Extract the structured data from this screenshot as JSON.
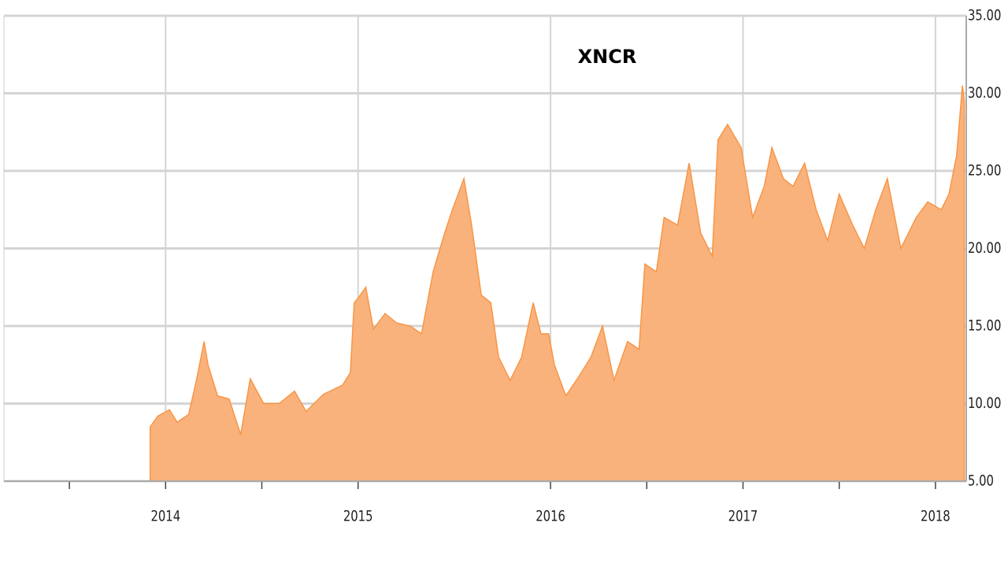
{
  "chart_data": {
    "type": "area",
    "title": "XNCR",
    "x": [
      2013.92,
      2013.96,
      2014.02,
      2014.06,
      2014.12,
      2014.16,
      2014.2,
      2014.22,
      2014.27,
      2014.33,
      2014.39,
      2014.44,
      2014.51,
      2014.59,
      2014.67,
      2014.73,
      2014.82,
      2014.92,
      2014.96,
      2014.98,
      2015.0,
      2015.04,
      2015.08,
      2015.14,
      2015.2,
      2015.27,
      2015.33,
      2015.39,
      2015.45,
      2015.49,
      2015.55,
      2015.59,
      2015.64,
      2015.69,
      2015.73,
      2015.79,
      2015.85,
      2015.91,
      2015.95,
      2015.99,
      2016.02,
      2016.08,
      2016.15,
      2016.21,
      2016.27,
      2016.33,
      2016.4,
      2016.46,
      2016.49,
      2016.55,
      2016.59,
      2016.66,
      2016.72,
      2016.78,
      2016.84,
      2016.87,
      2016.92,
      2016.99,
      2017.05,
      2017.11,
      2017.15,
      2017.21,
      2017.26,
      2017.32,
      2017.38,
      2017.44,
      2017.5,
      2017.57,
      2017.63,
      2017.69,
      2017.75,
      2017.82,
      2017.9,
      2017.96,
      2018.03,
      2018.07,
      2018.11,
      2018.14,
      2018.15
    ],
    "series": [
      {
        "name": "XNCR",
        "color": "#f79646",
        "fill": "#fab27c",
        "values": [
          8.5,
          9.2,
          9.6,
          8.8,
          9.3,
          11.5,
          14.0,
          12.5,
          10.5,
          10.3,
          8.0,
          11.6,
          10.0,
          10.0,
          10.8,
          9.5,
          10.6,
          11.2,
          12.0,
          16.5,
          16.8,
          17.5,
          14.8,
          15.8,
          15.2,
          15.0,
          14.5,
          18.5,
          21.0,
          22.5,
          24.5,
          21.5,
          17.0,
          16.5,
          13.0,
          11.5,
          13.0,
          16.5,
          14.5,
          14.5,
          12.5,
          10.5,
          11.8,
          13.0,
          15.0,
          11.5,
          14.0,
          13.5,
          19.0,
          18.5,
          22.0,
          21.5,
          25.5,
          21.0,
          19.5,
          27.0,
          28.0,
          26.5,
          22.0,
          24.0,
          26.5,
          24.5,
          24.0,
          25.5,
          22.5,
          20.5,
          23.5,
          21.5,
          20.0,
          22.5,
          24.5,
          20.0,
          22.0,
          23.0,
          22.5,
          23.5,
          26.0,
          30.5,
          29.5
        ]
      }
    ],
    "xlim": [
      2013.16,
      2018.16
    ],
    "xticks": [
      2014,
      2015,
      2016,
      2017,
      2018
    ],
    "xminorticks": [
      2013.5,
      2014.5,
      2016.5,
      2017.5
    ],
    "ylim": [
      5,
      35
    ],
    "yticks": [
      {
        "value": 5,
        "label": "5.00"
      },
      {
        "value": 10,
        "label": "10.00"
      },
      {
        "value": 15,
        "label": "15.00"
      },
      {
        "value": 20,
        "label": "20.00"
      },
      {
        "value": 25,
        "label": "25.00"
      },
      {
        "value": 30,
        "label": "30.00"
      },
      {
        "value": 35,
        "label": "35.00"
      }
    ],
    "grid": true
  }
}
